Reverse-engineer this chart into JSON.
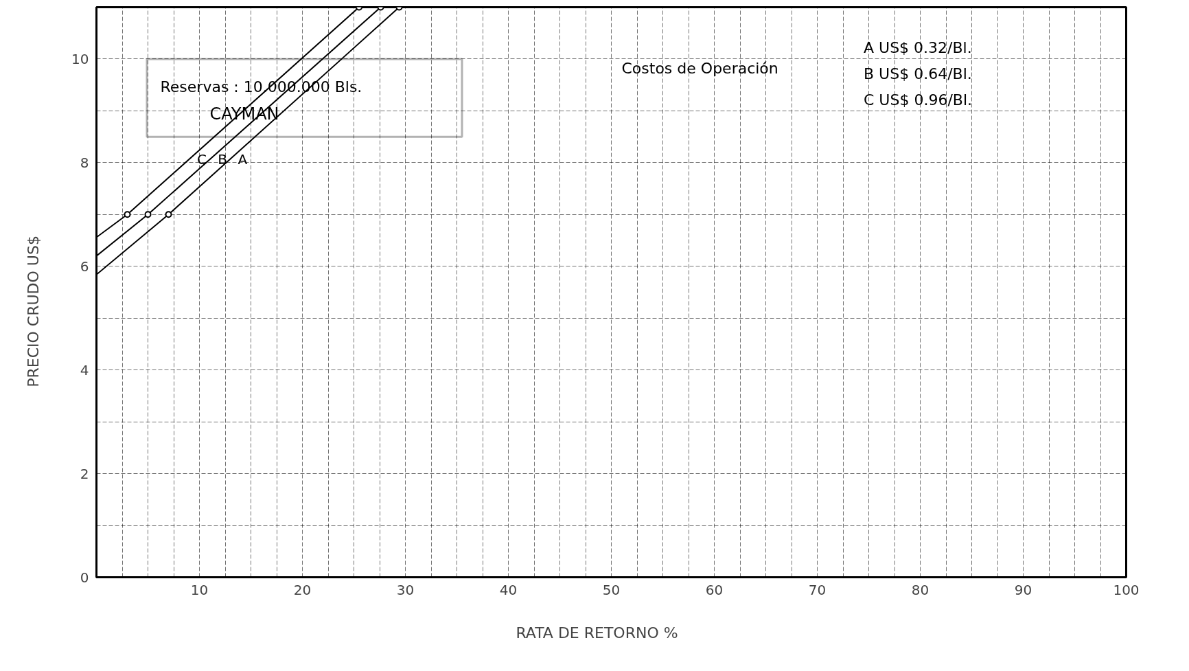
{
  "chart_data": {
    "type": "line",
    "xlabel": "RATA   DE   RETORNO   %",
    "ylabel": "PRECIO     CRUDO     US$",
    "series": [
      {
        "name": "C",
        "color": "#000000",
        "x": [
          0,
          3,
          25.5
        ],
        "values": [
          6.56,
          7,
          11
        ]
      },
      {
        "name": "B",
        "color": "#000000",
        "x": [
          0,
          5,
          27.6
        ],
        "values": [
          6.2,
          7,
          11
        ]
      },
      {
        "name": "A",
        "color": "#000000",
        "x": [
          0,
          7,
          29.4
        ],
        "values": [
          5.84,
          7,
          11
        ]
      },
      {
        "type": "scatter",
        "color": "#000000",
        "marker": "circle",
        "x": [
          3,
          5,
          7,
          25.5,
          27.6,
          29.4
        ],
        "values": [
          7,
          7,
          7,
          11,
          11,
          11
        ]
      }
    ],
    "xlim": [
      0,
      100
    ],
    "ylim": [
      0,
      11
    ],
    "xticks": [
      {
        "value": 2.5,
        "label": null
      },
      {
        "value": 5,
        "label": null
      },
      {
        "value": 7.5,
        "label": null
      },
      10,
      {
        "value": 12.5,
        "label": null
      },
      {
        "value": 15,
        "label": null
      },
      {
        "value": 17.5,
        "label": null
      },
      20,
      {
        "value": 22.5,
        "label": null
      },
      {
        "value": 25,
        "label": null
      },
      {
        "value": 27.5,
        "label": null
      },
      30,
      {
        "value": 32.5,
        "label": null
      },
      {
        "value": 35,
        "label": null
      },
      {
        "value": 37.5,
        "label": null
      },
      40,
      {
        "value": 42.5,
        "label": null
      },
      {
        "value": 45,
        "label": null
      },
      {
        "value": 47.5,
        "label": null
      },
      50,
      {
        "value": 52.5,
        "label": null
      },
      {
        "value": 55,
        "label": null
      },
      {
        "value": 57.5,
        "label": null
      },
      60,
      {
        "value": 62.5,
        "label": null
      },
      {
        "value": 65,
        "label": null
      },
      {
        "value": 67.5,
        "label": null
      },
      70,
      {
        "value": 72.5,
        "label": null
      },
      {
        "value": 75,
        "label": null
      },
      {
        "value": 77.5,
        "label": null
      },
      80,
      {
        "value": 82.5,
        "label": null
      },
      {
        "value": 85,
        "label": null
      },
      {
        "value": 87.5,
        "label": null
      },
      90,
      {
        "value": 92.5,
        "label": null
      },
      {
        "value": 95,
        "label": null
      },
      {
        "value": 97.5,
        "label": null
      },
      100
    ],
    "yticks": [
      0,
      {
        "value": 1,
        "label": null
      },
      2,
      {
        "value": 3,
        "label": null
      },
      4,
      {
        "value": 5,
        "label": null
      },
      6,
      {
        "value": 7,
        "label": null
      },
      8,
      {
        "value": 9,
        "label": null
      },
      10,
      {
        "value": 11,
        "label": null
      }
    ],
    "grid": true,
    "line_style": "solid",
    "annotations": [
      "Reservas : 10.000.000 Bls.",
      "CAYMAN",
      "Costos de Operación",
      "A   US$ 0.32/Bl.",
      "B   US$ 0.64/Bl.",
      "C   US$ 0.96/Bl."
    ]
  }
}
